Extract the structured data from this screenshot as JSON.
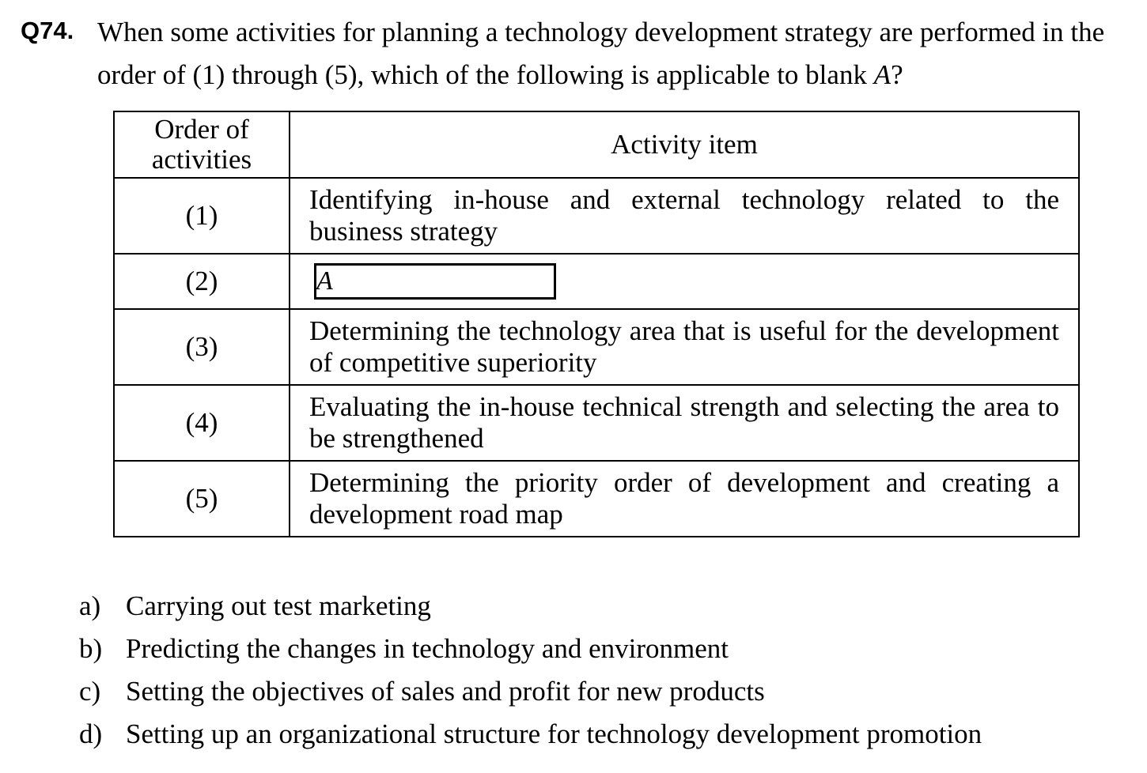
{
  "question": {
    "number": "Q74.",
    "text_before": "When some activities for planning a technology development strategy are performed in the order of (1) through (5), which of the following is applicable to blank ",
    "blank_label": "A",
    "text_after": "?"
  },
  "table": {
    "headers": {
      "order_line1": "Order of",
      "order_line2": "activities",
      "activity": "Activity item"
    },
    "rows": [
      {
        "order": "(1)",
        "activity": "Identifying in-house and external technology related to the business strategy"
      },
      {
        "order": "(2)",
        "activity": "A"
      },
      {
        "order": "(3)",
        "activity": "Determining the technology area that is useful for the development of competitive superiority"
      },
      {
        "order": "(4)",
        "activity": "Evaluating the in-house technical strength and selecting the area to be strengthened"
      },
      {
        "order": "(5)",
        "activity": "Determining the priority order of development and creating a development road map"
      }
    ]
  },
  "options": [
    {
      "letter": "a)",
      "text": "Carrying out test marketing"
    },
    {
      "letter": "b)",
      "text": "Predicting the changes in technology and environment"
    },
    {
      "letter": "c)",
      "text": "Setting the objectives of sales and profit for new products"
    },
    {
      "letter": "d)",
      "text": "Setting up an organizational structure for technology development promotion"
    }
  ]
}
